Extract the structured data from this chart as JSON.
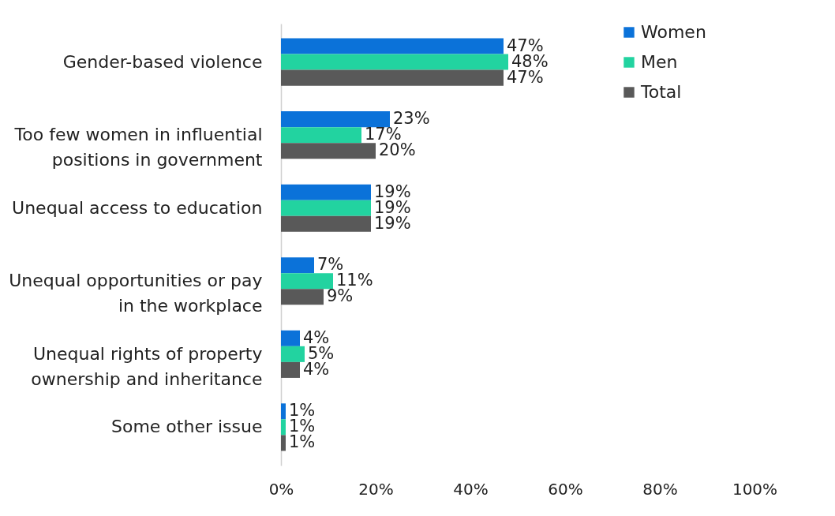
{
  "chart_data": {
    "type": "bar",
    "orientation": "horizontal",
    "categories": [
      "Gender-based violence",
      "Too few women in influential positions in government",
      "Unequal access to education",
      "Unequal opportunities or pay in the workplace",
      "Unequal rights of property ownership and inheritance",
      "Some other issue"
    ],
    "series": [
      {
        "name": "Women",
        "color": "#0b72d9",
        "values": [
          47,
          23,
          19,
          7,
          4,
          1
        ],
        "value_labels": [
          "47%",
          "23%",
          "19%",
          "7%",
          "4%",
          "1%"
        ]
      },
      {
        "name": "Men",
        "color": "#22d3a0",
        "values": [
          48,
          17,
          19,
          11,
          5,
          1
        ],
        "value_labels": [
          "48%",
          "17%",
          "19%",
          "11%",
          "5%",
          "1%"
        ]
      },
      {
        "name": "Total",
        "color": "#595959",
        "values": [
          47,
          20,
          19,
          9,
          4,
          1
        ],
        "value_labels": [
          "47%",
          "20%",
          "19%",
          "9%",
          "4%",
          "1%"
        ]
      }
    ],
    "xlim": [
      0,
      100
    ],
    "xticks": [
      {
        "value": 0,
        "label": "0%"
      },
      {
        "value": 20,
        "label": "20%"
      },
      {
        "value": 40,
        "label": "40%"
      },
      {
        "value": 60,
        "label": "60%"
      },
      {
        "value": 80,
        "label": "80%"
      },
      {
        "value": 100,
        "label": "100%"
      }
    ],
    "grid": false,
    "legend": "right"
  }
}
